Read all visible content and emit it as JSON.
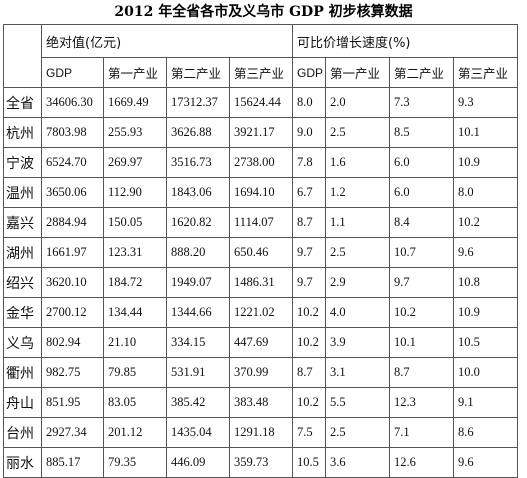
{
  "title": "2012 年全省各市及义乌市 GDP 初步核算数据",
  "headers": {
    "group1": "绝对值(亿元)",
    "group2": "可比价增长速度(%)",
    "sub": [
      "GDP",
      "第一产业",
      "第二产业",
      "第三产业",
      "GDP",
      "第一产业",
      "第二产业",
      "第三产业"
    ]
  },
  "rows": [
    {
      "region": "全省",
      "vals": [
        "34606.30",
        "1669.49",
        "17312.37",
        "15624.44",
        "8.0",
        "2.0",
        "7.3",
        "9.3"
      ]
    },
    {
      "region": "杭州",
      "vals": [
        "7803.98",
        "255.93",
        "3626.88",
        "3921.17",
        "9.0",
        "2.5",
        "8.5",
        "10.1"
      ]
    },
    {
      "region": "宁波",
      "vals": [
        "6524.70",
        "269.97",
        "3516.73",
        "2738.00",
        "7.8",
        "1.6",
        "6.0",
        "10.9"
      ]
    },
    {
      "region": "温州",
      "vals": [
        "3650.06",
        "112.90",
        "1843.06",
        "1694.10",
        "6.7",
        "1.2",
        "6.0",
        "8.0"
      ]
    },
    {
      "region": "嘉兴",
      "vals": [
        "2884.94",
        "150.05",
        "1620.82",
        "1114.07",
        "8.7",
        "1.1",
        "8.4",
        "10.2"
      ]
    },
    {
      "region": "湖州",
      "vals": [
        "1661.97",
        "123.31",
        "888.20",
        "650.46",
        "9.7",
        "2.5",
        "10.7",
        "9.6"
      ]
    },
    {
      "region": "绍兴",
      "vals": [
        "3620.10",
        "184.72",
        "1949.07",
        "1486.31",
        "9.7",
        "2.9",
        "9.7",
        "10.8"
      ]
    },
    {
      "region": "金华",
      "vals": [
        "2700.12",
        "134.44",
        "1344.66",
        "1221.02",
        "10.2",
        "4.0",
        "10.2",
        "10.9"
      ]
    },
    {
      "region": "义乌",
      "vals": [
        "802.94",
        "21.10",
        "334.15",
        "447.69",
        "10.2",
        "3.9",
        "10.1",
        "10.5"
      ]
    },
    {
      "region": "衢州",
      "vals": [
        "982.75",
        "79.85",
        "531.91",
        "370.99",
        "8.7",
        "3.1",
        "8.7",
        "10.0"
      ]
    },
    {
      "region": "舟山",
      "vals": [
        "851.95",
        "83.05",
        "385.42",
        "383.48",
        "10.2",
        "5.5",
        "12.3",
        "9.1"
      ]
    },
    {
      "region": "台州",
      "vals": [
        "2927.34",
        "201.12",
        "1435.04",
        "1291.18",
        "7.5",
        "2.5",
        "7.1",
        "8.6"
      ]
    },
    {
      "region": "丽水",
      "vals": [
        "885.17",
        "79.35",
        "446.09",
        "359.73",
        "10.5",
        "3.6",
        "12.6",
        "9.6"
      ]
    }
  ]
}
